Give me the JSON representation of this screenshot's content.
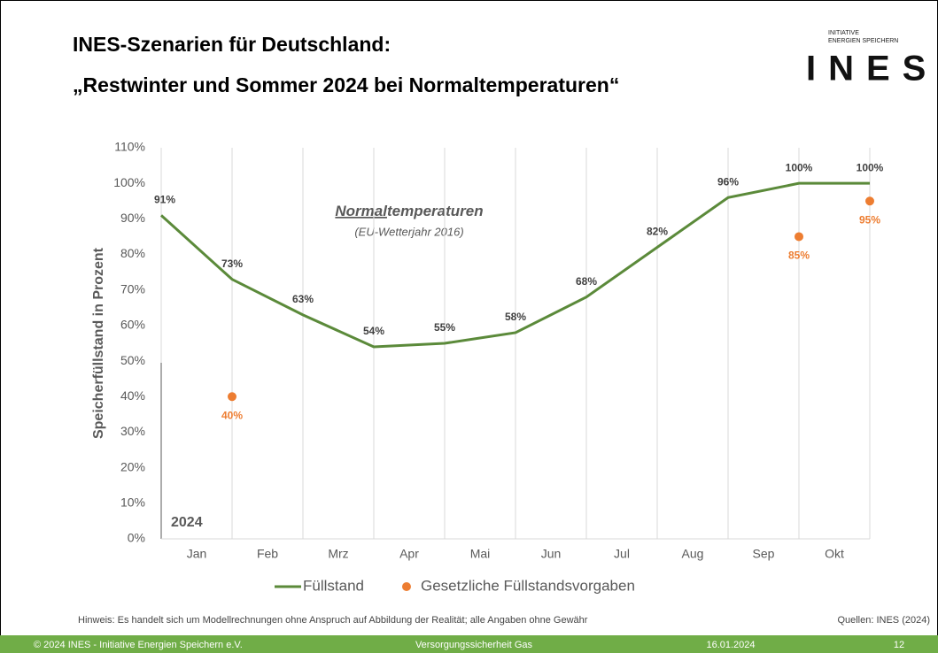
{
  "slide": {
    "title_line1": "INES-Szenarien für Deutschland:",
    "title_line2": "„Restwinter und Sommer 2024 bei Normaltemperaturen“",
    "logo_small_1": "INITIATIVE",
    "logo_small_2": "ENERGIEN SPEICHERN",
    "logo": "INES",
    "note": "Hinweis: Es handelt sich um Modellrechnungen ohne Anspruch auf Abbildung der Realität; alle Angaben ohne Gewähr",
    "source": "Quellen: INES (2024)",
    "footer_left": "© 2024 INES - Initiative Energien Speichern e.V.",
    "footer_center": "Versorgungssicherheit Gas",
    "footer_date": "16.01.2024",
    "footer_page": "12"
  },
  "chart_data": {
    "type": "line",
    "ylabel": "Speicherfüllstand in Prozent",
    "annotation_underlined": "Normal",
    "annotation_rest": "temperaturen",
    "annotation_sub": "(EU-Wetterjahr 2016)",
    "year_label": "2024",
    "categories": [
      "Jan",
      "Feb",
      "Mrz",
      "Apr",
      "Mai",
      "Jun",
      "Jul",
      "Aug",
      "Sep",
      "Okt"
    ],
    "x": [
      0,
      1,
      2,
      3,
      4,
      5,
      6,
      7,
      8,
      9,
      10
    ],
    "xlim": [
      0,
      10
    ],
    "xticks": [
      0,
      1,
      2,
      3,
      4,
      5,
      6,
      7,
      8,
      9,
      10
    ],
    "ylim": [
      0,
      110
    ],
    "yticks": [
      {
        "value": 0,
        "label": "0%"
      },
      {
        "value": 10,
        "label": "10%"
      },
      {
        "value": 20,
        "label": "20%"
      },
      {
        "value": 30,
        "label": "30%"
      },
      {
        "value": 40,
        "label": "40%"
      },
      {
        "value": 50,
        "label": "50%"
      },
      {
        "value": 60,
        "label": "60%"
      },
      {
        "value": 70,
        "label": "70%"
      },
      {
        "value": 80,
        "label": "80%"
      },
      {
        "value": 90,
        "label": "90%"
      },
      {
        "value": 100,
        "label": "100%"
      },
      {
        "value": 110,
        "label": "110%"
      }
    ],
    "series": [
      {
        "name": "Füllstand",
        "color": "#5b8a3a",
        "style": "line",
        "values": [
          91,
          73,
          63,
          54,
          55,
          58,
          68,
          82,
          96,
          100,
          100
        ],
        "value_labels": [
          "91%",
          "73%",
          "63%",
          "54%",
          "55%",
          "58%",
          "68%",
          "82%",
          "96%",
          "100%",
          "100%"
        ]
      },
      {
        "name": "Gesetzliche Füllstandsvorgaben",
        "color": "#ed7d31",
        "style": "markers",
        "values": [
          null,
          40,
          null,
          null,
          null,
          null,
          null,
          null,
          null,
          85,
          95
        ],
        "value_labels": [
          null,
          "40%",
          null,
          null,
          null,
          null,
          null,
          null,
          null,
          "85%",
          "95%"
        ]
      }
    ]
  }
}
